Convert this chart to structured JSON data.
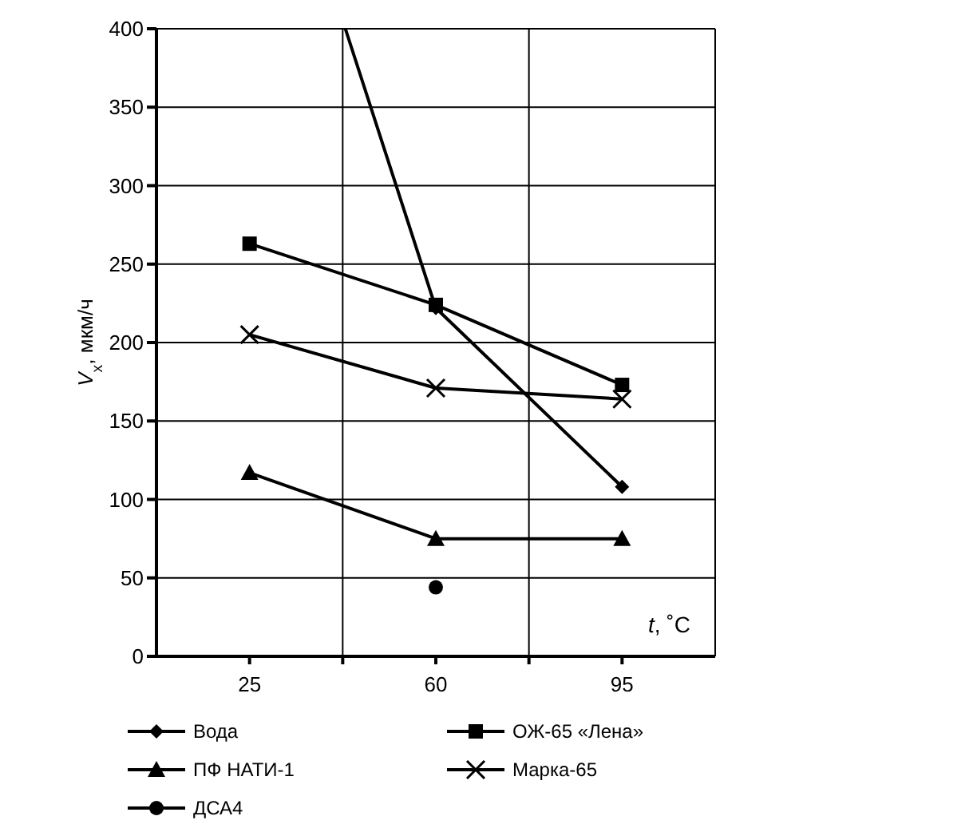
{
  "chart_data": {
    "type": "line",
    "x": [
      25,
      60,
      95
    ],
    "xlim": [
      7.5,
      112.5
    ],
    "xticks": [
      25,
      {
        "value": 42.5,
        "label": null
      },
      60,
      {
        "value": 77.5,
        "label": null
      },
      95
    ],
    "xlabel": "t, ˚C",
    "ylabel": "V$_{x}$, мкм/ч",
    "ylim": [
      0,
      400
    ],
    "yticks": [
      0,
      50,
      100,
      150,
      200,
      250,
      300,
      350,
      400
    ],
    "grid": true,
    "legend": "bottom",
    "series": [
      {
        "name": "Вода",
        "color": "#000000",
        "marker": "diamond",
        "x": [
          43,
          60,
          95
        ],
        "values": [
          400,
          222,
          108
        ]
      },
      {
        "name": "ОЖ-65 «Лена»",
        "color": "#000000",
        "marker": "square",
        "values": [
          263,
          224,
          173
        ]
      },
      {
        "name": "ПФ НАТИ-1",
        "color": "#000000",
        "marker": "triangle",
        "values": [
          117,
          75,
          75
        ]
      },
      {
        "name": "Марка-65",
        "color": "#000000",
        "marker": "cross",
        "values": [
          205,
          171,
          164
        ]
      },
      {
        "name": "ДСА4",
        "color": "#000000",
        "marker": "circle",
        "values": [
          null,
          44,
          null
        ]
      }
    ]
  }
}
